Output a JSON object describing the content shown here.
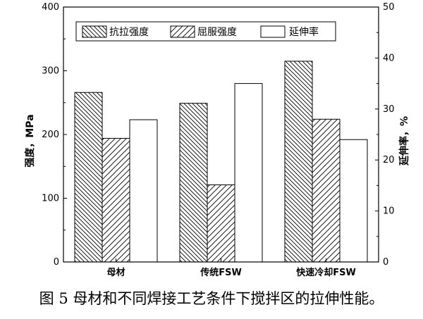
{
  "chart_data": {
    "type": "bar",
    "categories": [
      "母材",
      "传统FSW",
      "快速冷却FSW"
    ],
    "series": [
      {
        "name": "抗拉强度",
        "axis": "left",
        "pattern": "backslash-hatch",
        "values": [
          266,
          249,
          315
        ]
      },
      {
        "name": "屈服强度",
        "axis": "left",
        "pattern": "slash-hatch",
        "values": [
          194,
          121,
          224
        ]
      },
      {
        "name": "延伸率",
        "axis": "right",
        "pattern": "none",
        "values": [
          27.9,
          35.0,
          24.0
        ]
      }
    ],
    "ylabel_left": "强度，MPa",
    "ylabel_right": "延伸率，%",
    "ylim_left": [
      0,
      400
    ],
    "ylim_right": [
      0,
      50
    ],
    "yticks_left": [
      "0",
      "100",
      "200",
      "300",
      "400"
    ],
    "yticks_right": [
      "0",
      "10",
      "20",
      "30",
      "40",
      "50"
    ],
    "legend_position": "top",
    "grid": false
  },
  "caption": "图 5  母材和不同焊接工艺条件下搅拌区的拉伸性能。"
}
